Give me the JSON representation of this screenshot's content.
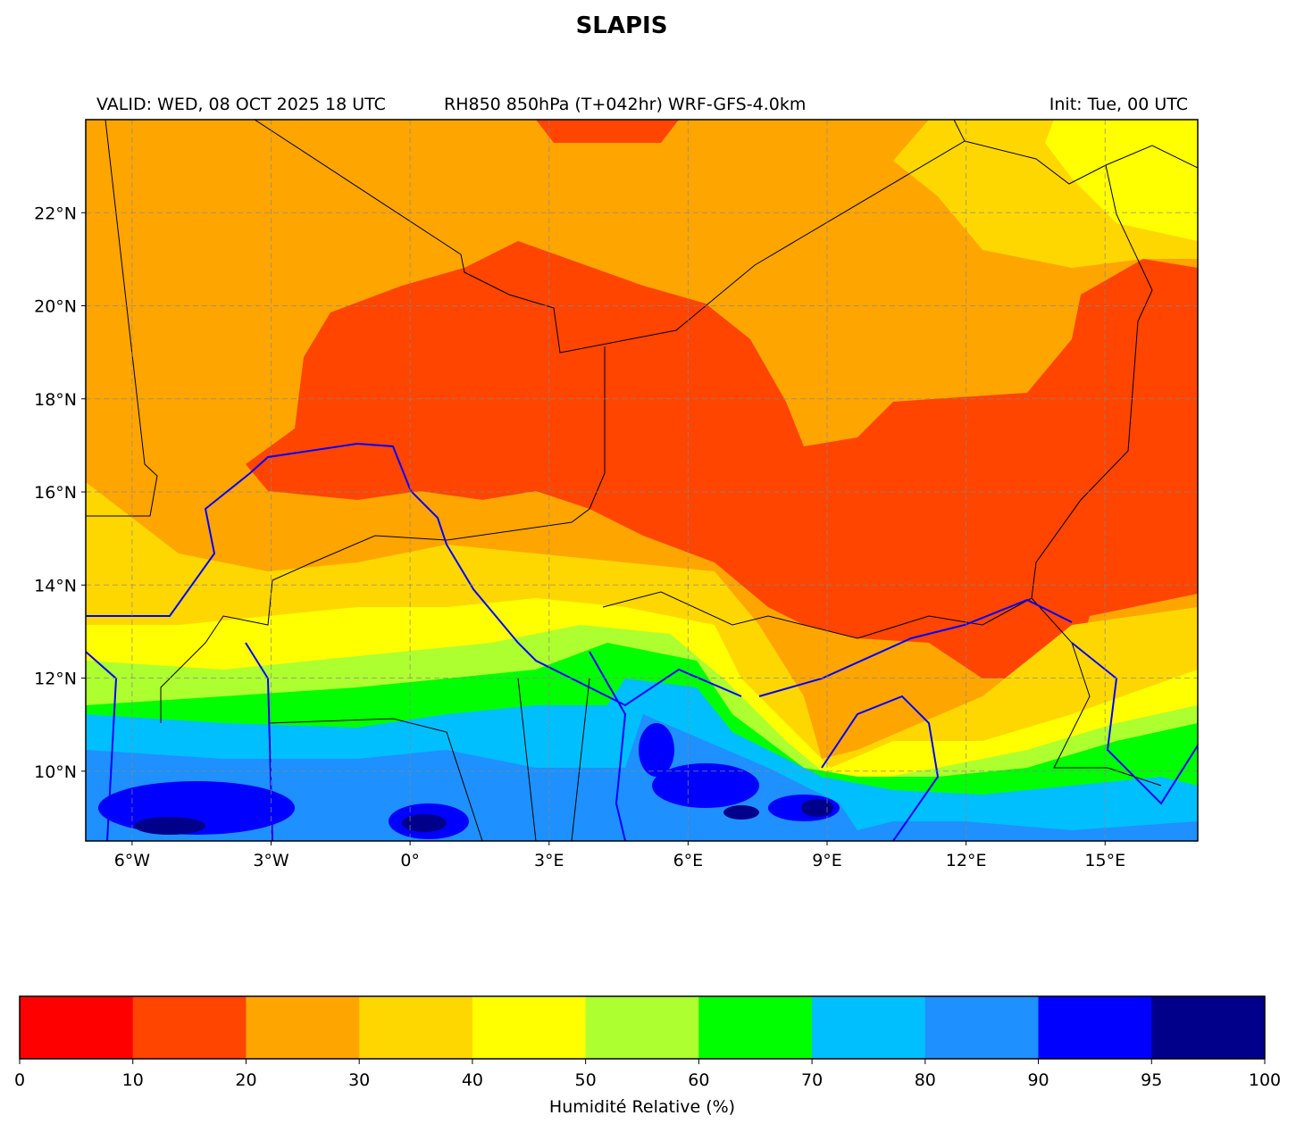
{
  "title": "SLAPIS",
  "header": {
    "left": "VALID: WED, 08 OCT 2025 18 UTC",
    "center": "RH850 850hPa (T+042hr) WRF-GFS-4.0km",
    "right": "Init: Tue, 00 UTC"
  },
  "map": {
    "xlim": [
      -7,
      17
    ],
    "ylim": [
      8.5,
      24
    ],
    "xticks": [
      {
        "value": -6,
        "label": "6°W"
      },
      {
        "value": -3,
        "label": "3°W"
      },
      {
        "value": 0,
        "label": "0°"
      },
      {
        "value": 3,
        "label": "3°E"
      },
      {
        "value": 6,
        "label": "6°E"
      },
      {
        "value": 9,
        "label": "9°E"
      },
      {
        "value": 12,
        "label": "12°E"
      },
      {
        "value": 15,
        "label": "15°E"
      }
    ],
    "yticks": [
      {
        "value": 10,
        "label": "10°N"
      },
      {
        "value": 12,
        "label": "12°N"
      },
      {
        "value": 14,
        "label": "14°N"
      },
      {
        "value": 16,
        "label": "16°N"
      },
      {
        "value": 18,
        "label": "18°N"
      },
      {
        "value": 20,
        "label": "20°N"
      },
      {
        "value": 22,
        "label": "22°N"
      }
    ],
    "grid": true
  },
  "colorbar": {
    "bounds": [
      0,
      10,
      20,
      30,
      40,
      50,
      60,
      70,
      80,
      90,
      95,
      100
    ],
    "colors": [
      "#ff0000",
      "#ff4500",
      "#ffa500",
      "#ffd700",
      "#ffff00",
      "#adff2f",
      "#00ff00",
      "#00bfff",
      "#1e90ff",
      "#0000ff",
      "#00008b"
    ],
    "label": "Humidité Relative (%)"
  }
}
